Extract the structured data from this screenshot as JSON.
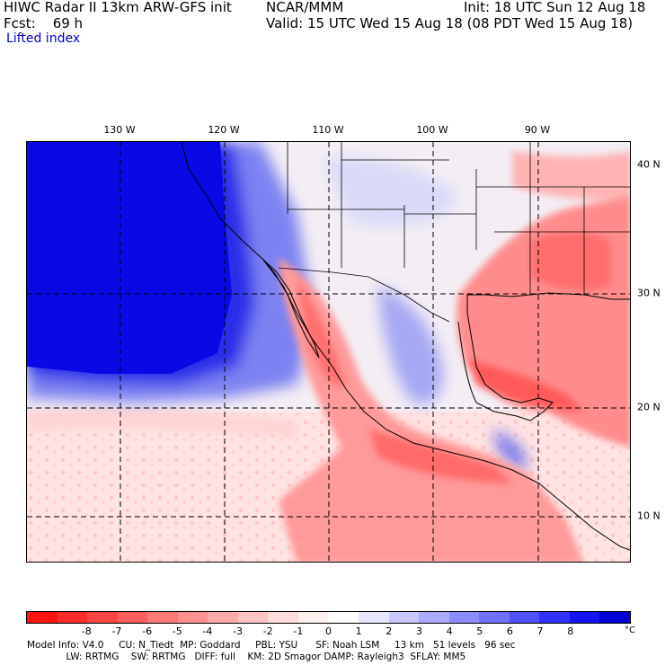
{
  "header": {
    "model_title": "HIWC Radar II 13km ARW-GFS init",
    "org": "NCAR/MMM",
    "init": "Init: 18 UTC Sun 12 Aug 18",
    "fcst": "Fcst:    69 h",
    "valid": "Valid: 15 UTC Wed 15 Aug 18 (08 PDT Wed 15 Aug 18)",
    "field": "Lifted index"
  },
  "map": {
    "lon_labels": [
      "130 W",
      "120 W",
      "110 W",
      "100 W",
      "90 W"
    ],
    "lat_labels": [
      "40 N",
      "30 N",
      "20 N",
      "10 N"
    ]
  },
  "colorbar": {
    "ticks": [
      "-8",
      "-7",
      "-6",
      "-5",
      "-4",
      "-3",
      "-2",
      "-1",
      "0",
      "1",
      "2",
      "3",
      "4",
      "5",
      "6",
      "7",
      "8"
    ],
    "unit": "°C",
    "colors": [
      "#ff1414",
      "#ff2c2c",
      "#ff4646",
      "#ff5f5f",
      "#ff7878",
      "#ff9191",
      "#ffaaaa",
      "#ffc3c3",
      "#ffdcdc",
      "#fff0f0",
      "#ffffff",
      "#e6e6ff",
      "#c8c8ff",
      "#aaaaff",
      "#8c8cff",
      "#6e6eff",
      "#5050ff",
      "#3232ff",
      "#1414f0",
      "#0000d2"
    ]
  },
  "footer": {
    "line1": "Model Info: V4.0     CU: N_Tiedt  MP: Goddard     PBL: YSU      SF: Noah LSM     13 km   51 levels   96 sec",
    "line2": "             LW: RRTMG    SW: RRTMG   DIFF: full    KM: 2D Smagor DAMP: Rayleigh3  SFLAY: MM5"
  }
}
